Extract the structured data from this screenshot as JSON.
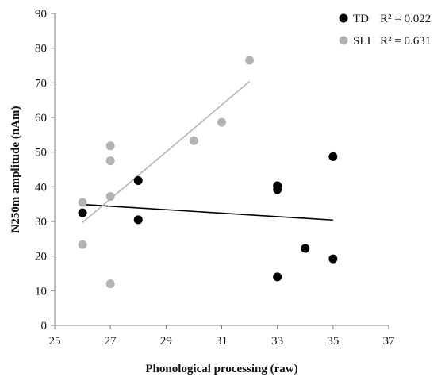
{
  "chart_data": {
    "type": "scatter",
    "xlabel": "Phonological processing (raw)",
    "ylabel": "N250m amplitude (nAm)",
    "xlim": [
      25,
      37
    ],
    "ylim": [
      0,
      90
    ],
    "x_ticks": [
      25,
      27,
      29,
      31,
      33,
      35,
      37
    ],
    "y_ticks": [
      0,
      10,
      20,
      30,
      40,
      50,
      60,
      70,
      80,
      90
    ],
    "grid": false,
    "legend_position": "top-right",
    "series": [
      {
        "name": "TD",
        "r2_label": "R² = 0.022",
        "color": "#000000",
        "points": [
          {
            "x": 26,
            "y": 32.5
          },
          {
            "x": 28,
            "y": 41.8
          },
          {
            "x": 28,
            "y": 30.5
          },
          {
            "x": 33,
            "y": 40.3
          },
          {
            "x": 33,
            "y": 39.2
          },
          {
            "x": 33,
            "y": 14.0
          },
          {
            "x": 34,
            "y": 22.2
          },
          {
            "x": 35,
            "y": 48.7
          },
          {
            "x": 35,
            "y": 19.2
          }
        ],
        "trendline": {
          "x": [
            26,
            35
          ],
          "y": [
            34.9,
            30.4
          ]
        }
      },
      {
        "name": "SLI",
        "r2_label": "R² = 0.631",
        "color": "#b3b3b3",
        "points": [
          {
            "x": 26,
            "y": 35.5
          },
          {
            "x": 26,
            "y": 23.3
          },
          {
            "x": 27,
            "y": 51.8
          },
          {
            "x": 27,
            "y": 47.5
          },
          {
            "x": 27,
            "y": 37.2
          },
          {
            "x": 27,
            "y": 12.0
          },
          {
            "x": 30,
            "y": 53.3
          },
          {
            "x": 31,
            "y": 58.6
          },
          {
            "x": 32,
            "y": 76.5
          }
        ],
        "trendline": {
          "x": [
            26,
            32
          ],
          "y": [
            29.7,
            70.4
          ]
        }
      }
    ]
  }
}
